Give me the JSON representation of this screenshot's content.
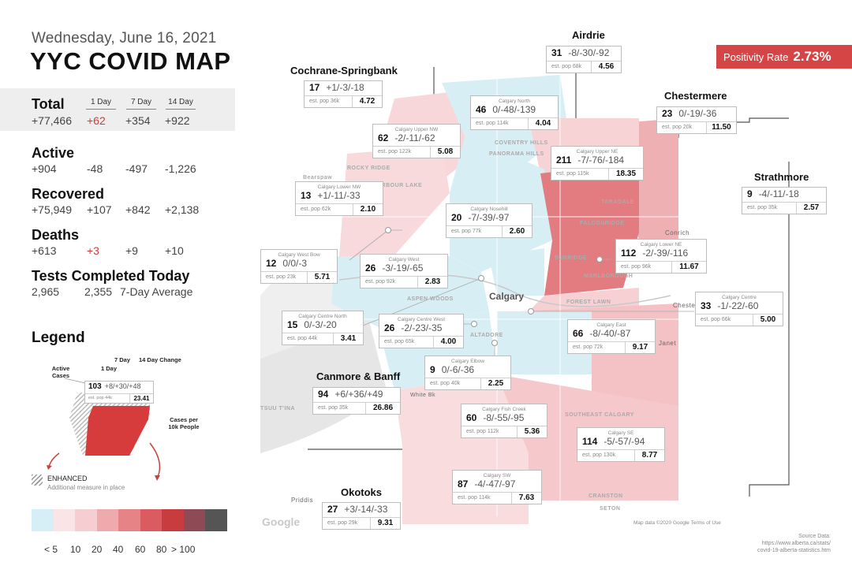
{
  "header": {
    "date": "Wednesday, June 16, 2021",
    "title": "YYC COVID MAP"
  },
  "stats": {
    "columns": [
      "1 Day",
      "7 Day",
      "14 Day"
    ],
    "total": {
      "label": "Total",
      "value": "+77,466",
      "d1": "+62",
      "d7": "+354",
      "d14": "+922"
    },
    "active": {
      "label": "Active",
      "value": "+904",
      "d1": "-48",
      "d7": "-497",
      "d14": "-1,226"
    },
    "recovered": {
      "label": "Recovered",
      "value": "+75,949",
      "d1": "+107",
      "d7": "+842",
      "d14": "+2,138"
    },
    "deaths": {
      "label": "Deaths",
      "value": "+613",
      "d1": "+3",
      "d7": "+9",
      "d14": "+10"
    },
    "tests": {
      "label": "Tests Completed Today",
      "value": "2,965",
      "avg": "2,355",
      "avg_label": "7-Day Average"
    }
  },
  "legend": {
    "title": "Legend",
    "seven_day": "7 Day",
    "fourteen_day": "14 Day Change",
    "one_day": "1 Day",
    "active_cases": "Active Cases",
    "cases_per": "Cases per 10k People",
    "sample_cases": "103",
    "sample_change": "+8/+30/+48",
    "sample_pop": "est. pop 44k",
    "sample_rate": "23.41",
    "enhanced": "ENHANCED",
    "enhanced_sub": "Additional measure in place",
    "scale_labels": [
      "< 5",
      "10",
      "20",
      "40",
      "60",
      "80",
      "> 100"
    ],
    "scale_colors": [
      "#d6eef6",
      "#fbe4e6",
      "#f6cdd0",
      "#eeaaad",
      "#e68387",
      "#db5c60",
      "#c83c40",
      "#8e4a55",
      "#555555"
    ]
  },
  "positivity": {
    "label": "Positivity Rate",
    "value": "2.73%"
  },
  "regions": {
    "airdrie": "Airdrie",
    "cochrane": "Cochrane-Springbank",
    "chestermere": "Chestermere",
    "strathmore": "Strathmore",
    "canmore": "Canmore & Banff",
    "okotoks": "Okotoks"
  },
  "cards": {
    "airdrie": {
      "name": "",
      "cases": "31",
      "change": "-8/-30/-92",
      "pop": "est. pop 68k",
      "rate": "4.56"
    },
    "cochrane": {
      "name": "",
      "cases": "17",
      "change": "+1/-3/-18",
      "pop": "est. pop 36k",
      "rate": "4.72"
    },
    "north": {
      "name": "Calgary North",
      "cases": "46",
      "change": "0/-48/-139",
      "pop": "est. pop 114k",
      "rate": "4.04"
    },
    "upper_nw": {
      "name": "Calgary Upper NW",
      "cases": "62",
      "change": "-2/-11/-62",
      "pop": "est. pop 122k",
      "rate": "5.08"
    },
    "chestermere": {
      "name": "",
      "cases": "23",
      "change": "0/-19/-36",
      "pop": "est. pop 20k",
      "rate": "11.50"
    },
    "upper_ne": {
      "name": "Calgary Upper NE",
      "cases": "211",
      "change": "-7/-76/-184",
      "pop": "est. pop 115k",
      "rate": "18.35"
    },
    "lower_nw": {
      "name": "Calgary Lower NW",
      "cases": "13",
      "change": "+1/-11/-33",
      "pop": "est. pop 62k",
      "rate": "2.10"
    },
    "nosehill": {
      "name": "Calgary Nosehill",
      "cases": "20",
      "change": "-7/-39/-97",
      "pop": "est. pop 77k",
      "rate": "2.60"
    },
    "strathmore": {
      "name": "",
      "cases": "9",
      "change": "-4/-11/-18",
      "pop": "est. pop 35k",
      "rate": "2.57"
    },
    "west_bow": {
      "name": "Calgary West Bow",
      "cases": "12",
      "change": "0/0/-3",
      "pop": "est. pop 23k",
      "rate": "5.71"
    },
    "west": {
      "name": "Calgary West",
      "cases": "26",
      "change": "-3/-19/-65",
      "pop": "est. pop 92k",
      "rate": "2.83"
    },
    "lower_ne": {
      "name": "Calgary Lower NE",
      "cases": "112",
      "change": "-2/-39/-116",
      "pop": "est. pop 96k",
      "rate": "11.67"
    },
    "centre": {
      "name": "Calgary Centre",
      "cases": "33",
      "change": "-1/-22/-60",
      "pop": "est. pop 66k",
      "rate": "5.00"
    },
    "centre_north": {
      "name": "Calgary Centre North",
      "cases": "15",
      "change": "0/-3/-20",
      "pop": "est. pop 44k",
      "rate": "3.41"
    },
    "centre_west": {
      "name": "Calgary Centre West",
      "cases": "26",
      "change": "-2/-23/-35",
      "pop": "est. pop 65k",
      "rate": "4.00"
    },
    "east": {
      "name": "Calgary East",
      "cases": "66",
      "change": "-8/-40/-87",
      "pop": "est. pop 72k",
      "rate": "9.17"
    },
    "elbow": {
      "name": "Calgary Elbow",
      "cases": "9",
      "change": "0/-6/-36",
      "pop": "est. pop 40k",
      "rate": "2.25"
    },
    "canmore": {
      "name": "",
      "cases": "94",
      "change": "+6/+36/+49",
      "pop": "est. pop 35k",
      "rate": "26.86"
    },
    "fish_creek": {
      "name": "Calgary Fish Creek",
      "cases": "60",
      "change": "-8/-55/-95",
      "pop": "est. pop 112k",
      "rate": "5.36"
    },
    "se": {
      "name": "Calgary SE",
      "cases": "114",
      "change": "-5/-57/-94",
      "pop": "est. pop 130k",
      "rate": "8.77"
    },
    "sw": {
      "name": "Calgary SW",
      "cases": "87",
      "change": "-4/-47/-97",
      "pop": "est. pop 114k",
      "rate": "7.63"
    },
    "okotoks": {
      "name": "",
      "cases": "27",
      "change": "+3/-14/-33",
      "pop": "est. pop 29k",
      "rate": "9.31"
    }
  },
  "map_labels": {
    "calgary": "Calgary",
    "conrich": "Conrich",
    "chestermere_town": "Chester",
    "janet": "Janet",
    "priddis": "Priddis",
    "white_bk": "White Bk",
    "coventry": "COVENTRY HILLS",
    "panorama": "PANORAMA HILLS",
    "rocky": "ROCKY RIDGE",
    "arbour": "ARBOUR LAKE",
    "taradale": "TARADALE",
    "saddle": "SADDLE RIDGE",
    "falconridge": "FALCONRIDGE",
    "sunridge": "SUNRIDGE",
    "marlborough": "MARLBOROUGH",
    "forest": "FOREST LAWN",
    "altadore": "ALTADORE",
    "aspen": "ASPEN WOODS",
    "southeast": "SOUTHEAST CALGARY",
    "cranston": "CRANSTON",
    "seton": "SETON",
    "bearspaw": "Bearspaw",
    "tsuu": "TSUU T'INA"
  },
  "footer": {
    "google": "Google",
    "map_data": "Map data ©2020 Google   Terms of Use",
    "source_title": "Source Data:",
    "source_url1": "https://www.alberta.ca/stats/",
    "source_url2": "covid-19-alberta-statistics.htm"
  }
}
